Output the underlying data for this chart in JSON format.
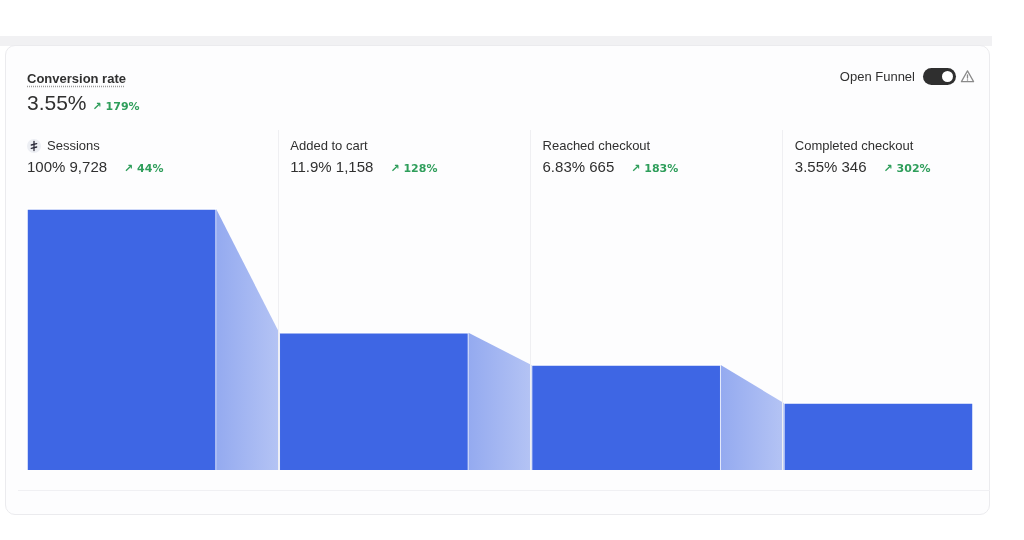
{
  "chart_data": {
    "type": "other",
    "title": "Conversion rate",
    "subtitle": "3.55%",
    "annotations": [
      "↗ 179%",
      "Open Funnel",
      "↗ 44%",
      "↗ 128%",
      "↗ 183%",
      "↗ 302%"
    ],
    "categories": [
      "Sessions",
      "Added to cart",
      "Reached checkout",
      "Completed checkout"
    ],
    "values": [
      9728,
      1158,
      665,
      346
    ],
    "value_labels": [
      "100% 9,728",
      "11.9% 1,158",
      "6.83% 665",
      "3.55% 346"
    ],
    "color": "#3e66e4"
  }
}
